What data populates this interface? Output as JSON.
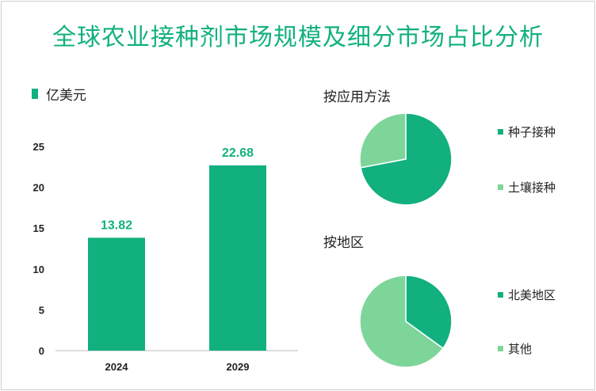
{
  "title": "全球农业接种剂市场规模及细分市场占比分析",
  "unit_label": "亿美元",
  "colors": {
    "primary": "#12b07f",
    "secondary": "#7dd59a",
    "axis": "#bfbfbf",
    "text": "#222222"
  },
  "chart_data": [
    {
      "type": "bar",
      "categories": [
        "2024",
        "2029"
      ],
      "values": [
        13.82,
        22.68
      ],
      "data_labels": [
        "13.82",
        "22.68"
      ],
      "ylim": [
        0,
        25
      ],
      "yticks": [
        "0",
        "5",
        "10",
        "15",
        "20",
        "25"
      ],
      "legend": "亿美元",
      "grid": false
    },
    {
      "type": "pie",
      "title": "按应用方法",
      "labels": [
        "种子接种",
        "土壤接种"
      ],
      "values": [
        72,
        28
      ],
      "colors": [
        "#12b07f",
        "#7dd59a"
      ]
    },
    {
      "type": "pie",
      "title": "按地区",
      "labels": [
        "北美地区",
        "其他"
      ],
      "values": [
        35,
        65
      ],
      "colors": [
        "#12b07f",
        "#7dd59a"
      ]
    }
  ]
}
